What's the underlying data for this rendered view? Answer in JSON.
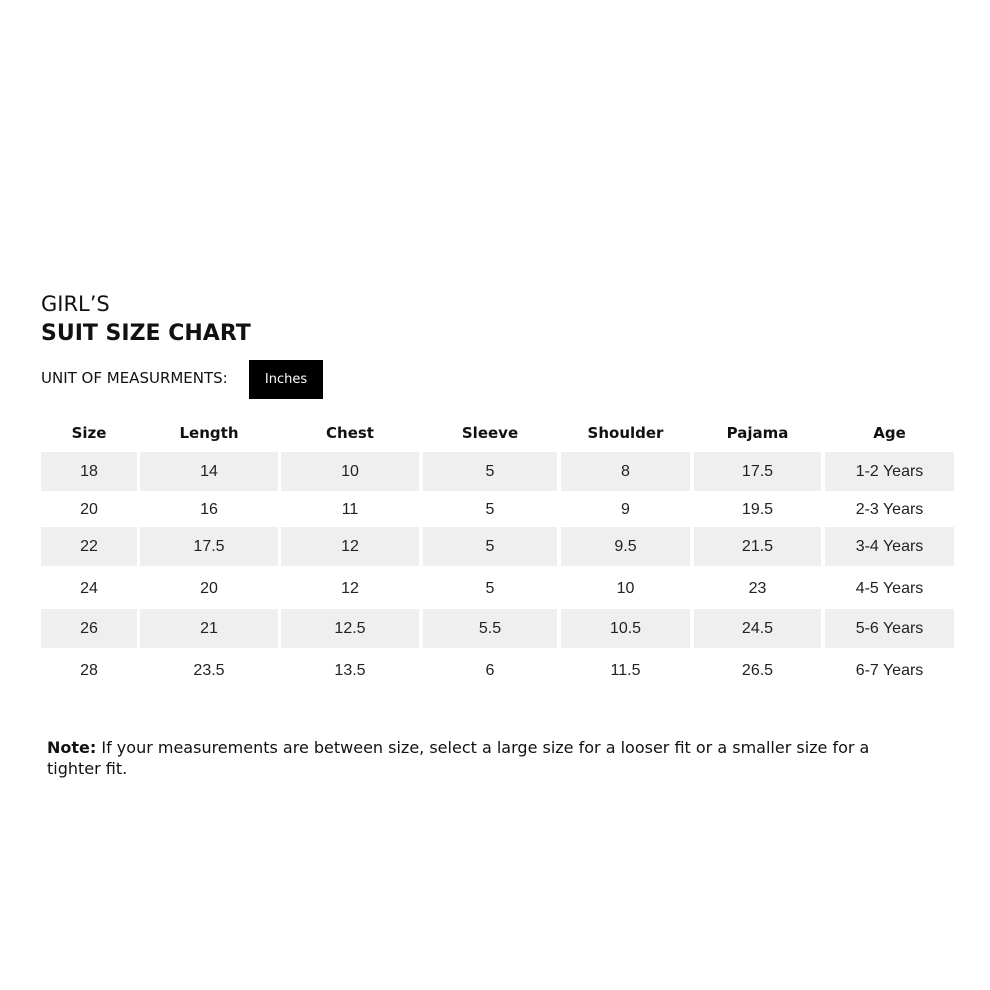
{
  "title_line1": "GIRL’S",
  "title_line2": "SUIT SIZE CHART",
  "unit_label": "UNIT OF MEASURMENTS:",
  "unit_value": "Inches",
  "columns": [
    "Size",
    "Length",
    "Chest",
    "Sleeve",
    "Shoulder",
    "Pajama",
    "Age"
  ],
  "rows": [
    [
      "18",
      "14",
      "10",
      "5",
      "8",
      "17.5",
      "1-2 Years"
    ],
    [
      "20",
      "16",
      "11",
      "5",
      "9",
      "19.5",
      "2-3 Years"
    ],
    [
      "22",
      "17.5",
      "12",
      "5",
      "9.5",
      "21.5",
      "3-4 Years"
    ],
    [
      "24",
      "20",
      "12",
      "5",
      "10",
      "23",
      "4-5 Years"
    ],
    [
      "26",
      "21",
      "12.5",
      "5.5",
      "10.5",
      "24.5",
      "5-6 Years"
    ],
    [
      "28",
      "23.5",
      "13.5",
      "6",
      "11.5",
      "26.5",
      "6-7 Years"
    ]
  ],
  "note_label": "Note:",
  "note_text": " If your measurements are between size, select a large size for a looser fit or a smaller size for a tighter fit.",
  "colors": {
    "stripe": "#efefef",
    "badge": "#000000"
  }
}
